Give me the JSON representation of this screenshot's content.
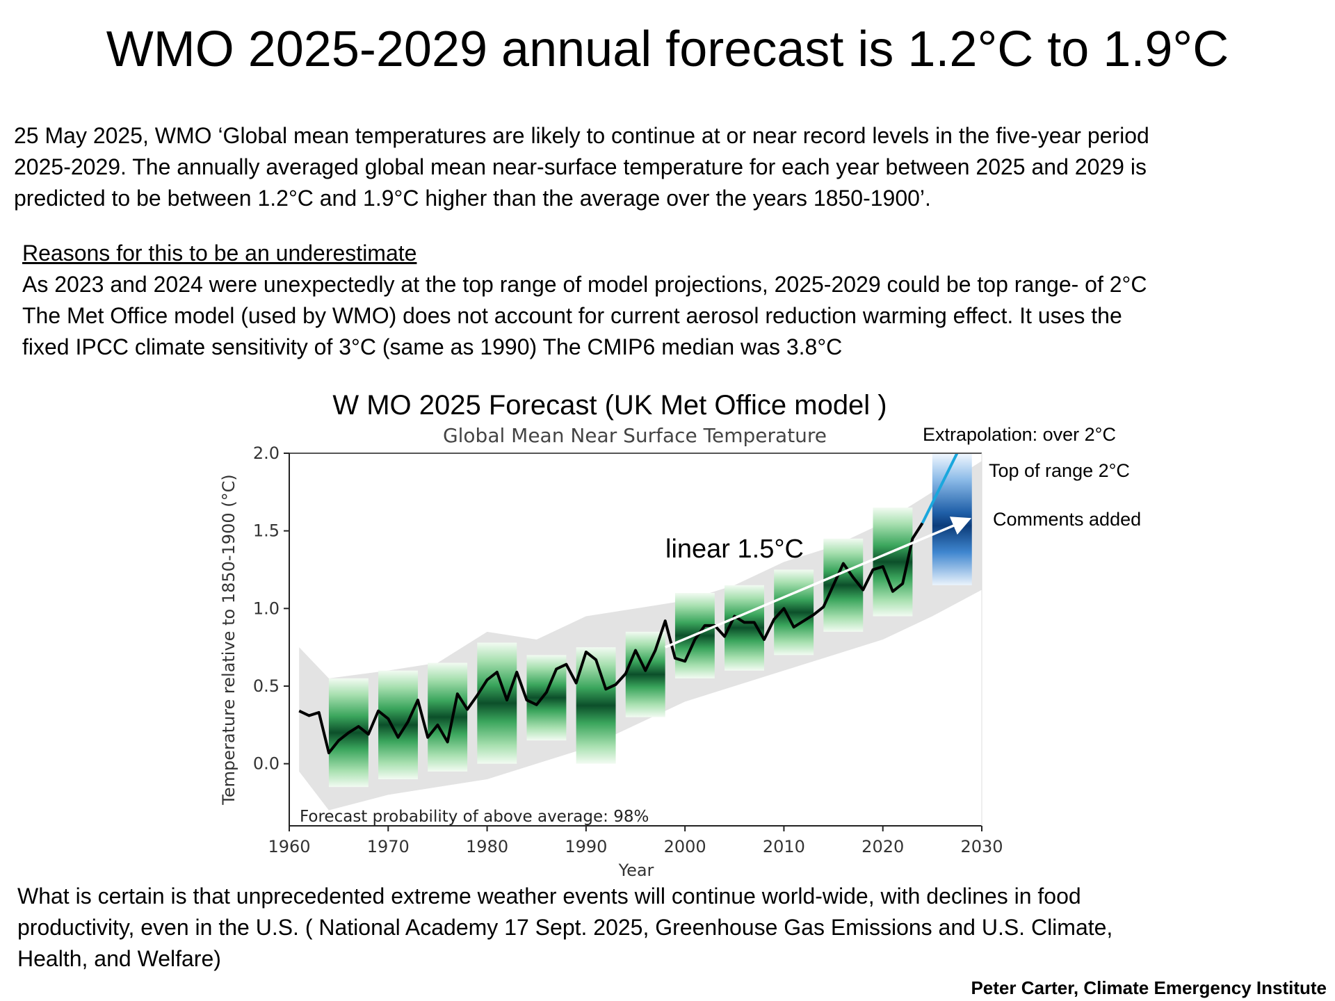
{
  "page": {
    "title": "WMO 2025-2029 annual forecast is 1.2°C to 1.9°C",
    "intro_lines": [
      "25 May 2025, WMO ‘Global mean temperatures are likely to continue at or near record levels in the five-year period",
      "2025-2029. The annually averaged global mean near-surface temperature for each year between 2025 and 2029 is",
      "predicted to be between 1.2°C and 1.9°C higher than the average over the years 1850-1900’."
    ],
    "reasons_heading": "Reasons for this to be an underestimate",
    "reasons_lines": [
      "As 2023 and 2024 were unexpectedly at the top range of model projections, 2025-2029 could be top range- of 2°C",
      "The Met Office model (used by WMO) does not account for current aerosol reduction warming effect. It uses the",
      "fixed IPCC climate sensitivity of 3°C (same as 1990)  The CMIP6 median was 3.8°C"
    ],
    "closing_lines": [
      "What is certain is that unprecedented extreme  weather events will continue world-wide, with declines in food",
      "productivity, even in the U.S. ( National Academy  17 Sept. 2025, Greenhouse Gas Emissions and U.S. Climate,",
      "Health, and Welfare)"
    ],
    "credit": "Peter Carter, Climate Emergency Institute"
  },
  "chart_data": {
    "type": "line",
    "heading": "W MO 2025 Forecast (UK Met Office model )",
    "title": "Global Mean Near Surface Temperature",
    "xlabel": "Year",
    "ylabel": "Temperature relative to 1850-1900 (°C)",
    "xlim": [
      1960,
      2030
    ],
    "ylim": [
      -0.4,
      2.0
    ],
    "xticks": [
      1960,
      1970,
      1980,
      1990,
      2000,
      2010,
      2020,
      2030
    ],
    "yticks": [
      0.0,
      0.5,
      1.0,
      1.5,
      2.0
    ],
    "grid": false,
    "footnote": "Forecast probability of above average: 98%",
    "colors": {
      "observed": "#000000",
      "hindcast": "#0e5c30",
      "forecast": "#0c3c7a",
      "envelope": "#e3e3e3",
      "extrapolation": "#1aa7dd",
      "linear_arrow": "#ffffff"
    },
    "observed": {
      "x": [
        1961,
        1962,
        1963,
        1964,
        1965,
        1966,
        1967,
        1968,
        1969,
        1970,
        1971,
        1972,
        1973,
        1974,
        1975,
        1976,
        1977,
        1978,
        1979,
        1980,
        1981,
        1982,
        1983,
        1984,
        1985,
        1986,
        1987,
        1988,
        1989,
        1990,
        1991,
        1992,
        1993,
        1994,
        1995,
        1996,
        1997,
        1998,
        1999,
        2000,
        2001,
        2002,
        2003,
        2004,
        2005,
        2006,
        2007,
        2008,
        2009,
        2010,
        2011,
        2012,
        2013,
        2014,
        2015,
        2016,
        2017,
        2018,
        2019,
        2020,
        2021,
        2022,
        2023,
        2024
      ],
      "y": [
        0.34,
        0.31,
        0.33,
        0.07,
        0.15,
        0.2,
        0.24,
        0.19,
        0.34,
        0.29,
        0.17,
        0.27,
        0.41,
        0.17,
        0.25,
        0.14,
        0.45,
        0.35,
        0.44,
        0.54,
        0.59,
        0.41,
        0.59,
        0.41,
        0.38,
        0.46,
        0.61,
        0.64,
        0.52,
        0.72,
        0.67,
        0.48,
        0.51,
        0.58,
        0.73,
        0.6,
        0.73,
        0.92,
        0.68,
        0.66,
        0.8,
        0.89,
        0.89,
        0.82,
        0.95,
        0.91,
        0.91,
        0.8,
        0.93,
        1.0,
        0.88,
        0.92,
        0.96,
        1.01,
        1.15,
        1.29,
        1.2,
        1.12,
        1.25,
        1.27,
        1.11,
        1.16,
        1.45,
        1.55
      ]
    },
    "envelope": {
      "x": [
        1961,
        1964,
        1970,
        1975,
        1980,
        1985,
        1990,
        1995,
        2000,
        2005,
        2010,
        2015,
        2020,
        2025,
        2030
      ],
      "low": [
        -0.05,
        -0.3,
        -0.2,
        -0.15,
        -0.1,
        0.0,
        0.1,
        0.25,
        0.4,
        0.5,
        0.6,
        0.7,
        0.8,
        0.95,
        1.12
      ],
      "high": [
        0.75,
        0.55,
        0.6,
        0.65,
        0.85,
        0.8,
        0.95,
        1.0,
        1.05,
        1.15,
        1.3,
        1.4,
        1.55,
        1.75,
        1.95
      ]
    },
    "hindcasts": [
      {
        "start": 1964,
        "end": 1968,
        "low": -0.15,
        "high": 0.55
      },
      {
        "start": 1969,
        "end": 1973,
        "low": -0.1,
        "high": 0.6
      },
      {
        "start": 1974,
        "end": 1978,
        "low": -0.05,
        "high": 0.65
      },
      {
        "start": 1979,
        "end": 1983,
        "low": 0.0,
        "high": 0.78
      },
      {
        "start": 1984,
        "end": 1988,
        "low": 0.15,
        "high": 0.7
      },
      {
        "start": 1989,
        "end": 1993,
        "low": 0.0,
        "high": 0.75
      },
      {
        "start": 1994,
        "end": 1998,
        "low": 0.3,
        "high": 0.85
      },
      {
        "start": 1999,
        "end": 2003,
        "low": 0.55,
        "high": 1.1
      },
      {
        "start": 2004,
        "end": 2008,
        "low": 0.6,
        "high": 1.15
      },
      {
        "start": 2009,
        "end": 2013,
        "low": 0.7,
        "high": 1.25
      },
      {
        "start": 2014,
        "end": 2018,
        "low": 0.85,
        "high": 1.45
      },
      {
        "start": 2019,
        "end": 2023,
        "low": 0.95,
        "high": 1.65
      }
    ],
    "forecast": {
      "start": 2025,
      "end": 2029,
      "low": 1.15,
      "high": 2.0
    },
    "annotations": {
      "linear_label": "linear 1.5°C",
      "linear_arrow": {
        "from": [
          1998,
          0.75
        ],
        "to": [
          2028.5,
          1.57
        ]
      },
      "extrapolation_label": "Extrapolation: over 2°C",
      "extrapolation_line": {
        "from": [
          2024,
          1.55
        ],
        "to": [
          2027.5,
          2.0
        ]
      },
      "top_of_range_label": "Top of range 2°C",
      "comments_label": "Comments added"
    }
  }
}
